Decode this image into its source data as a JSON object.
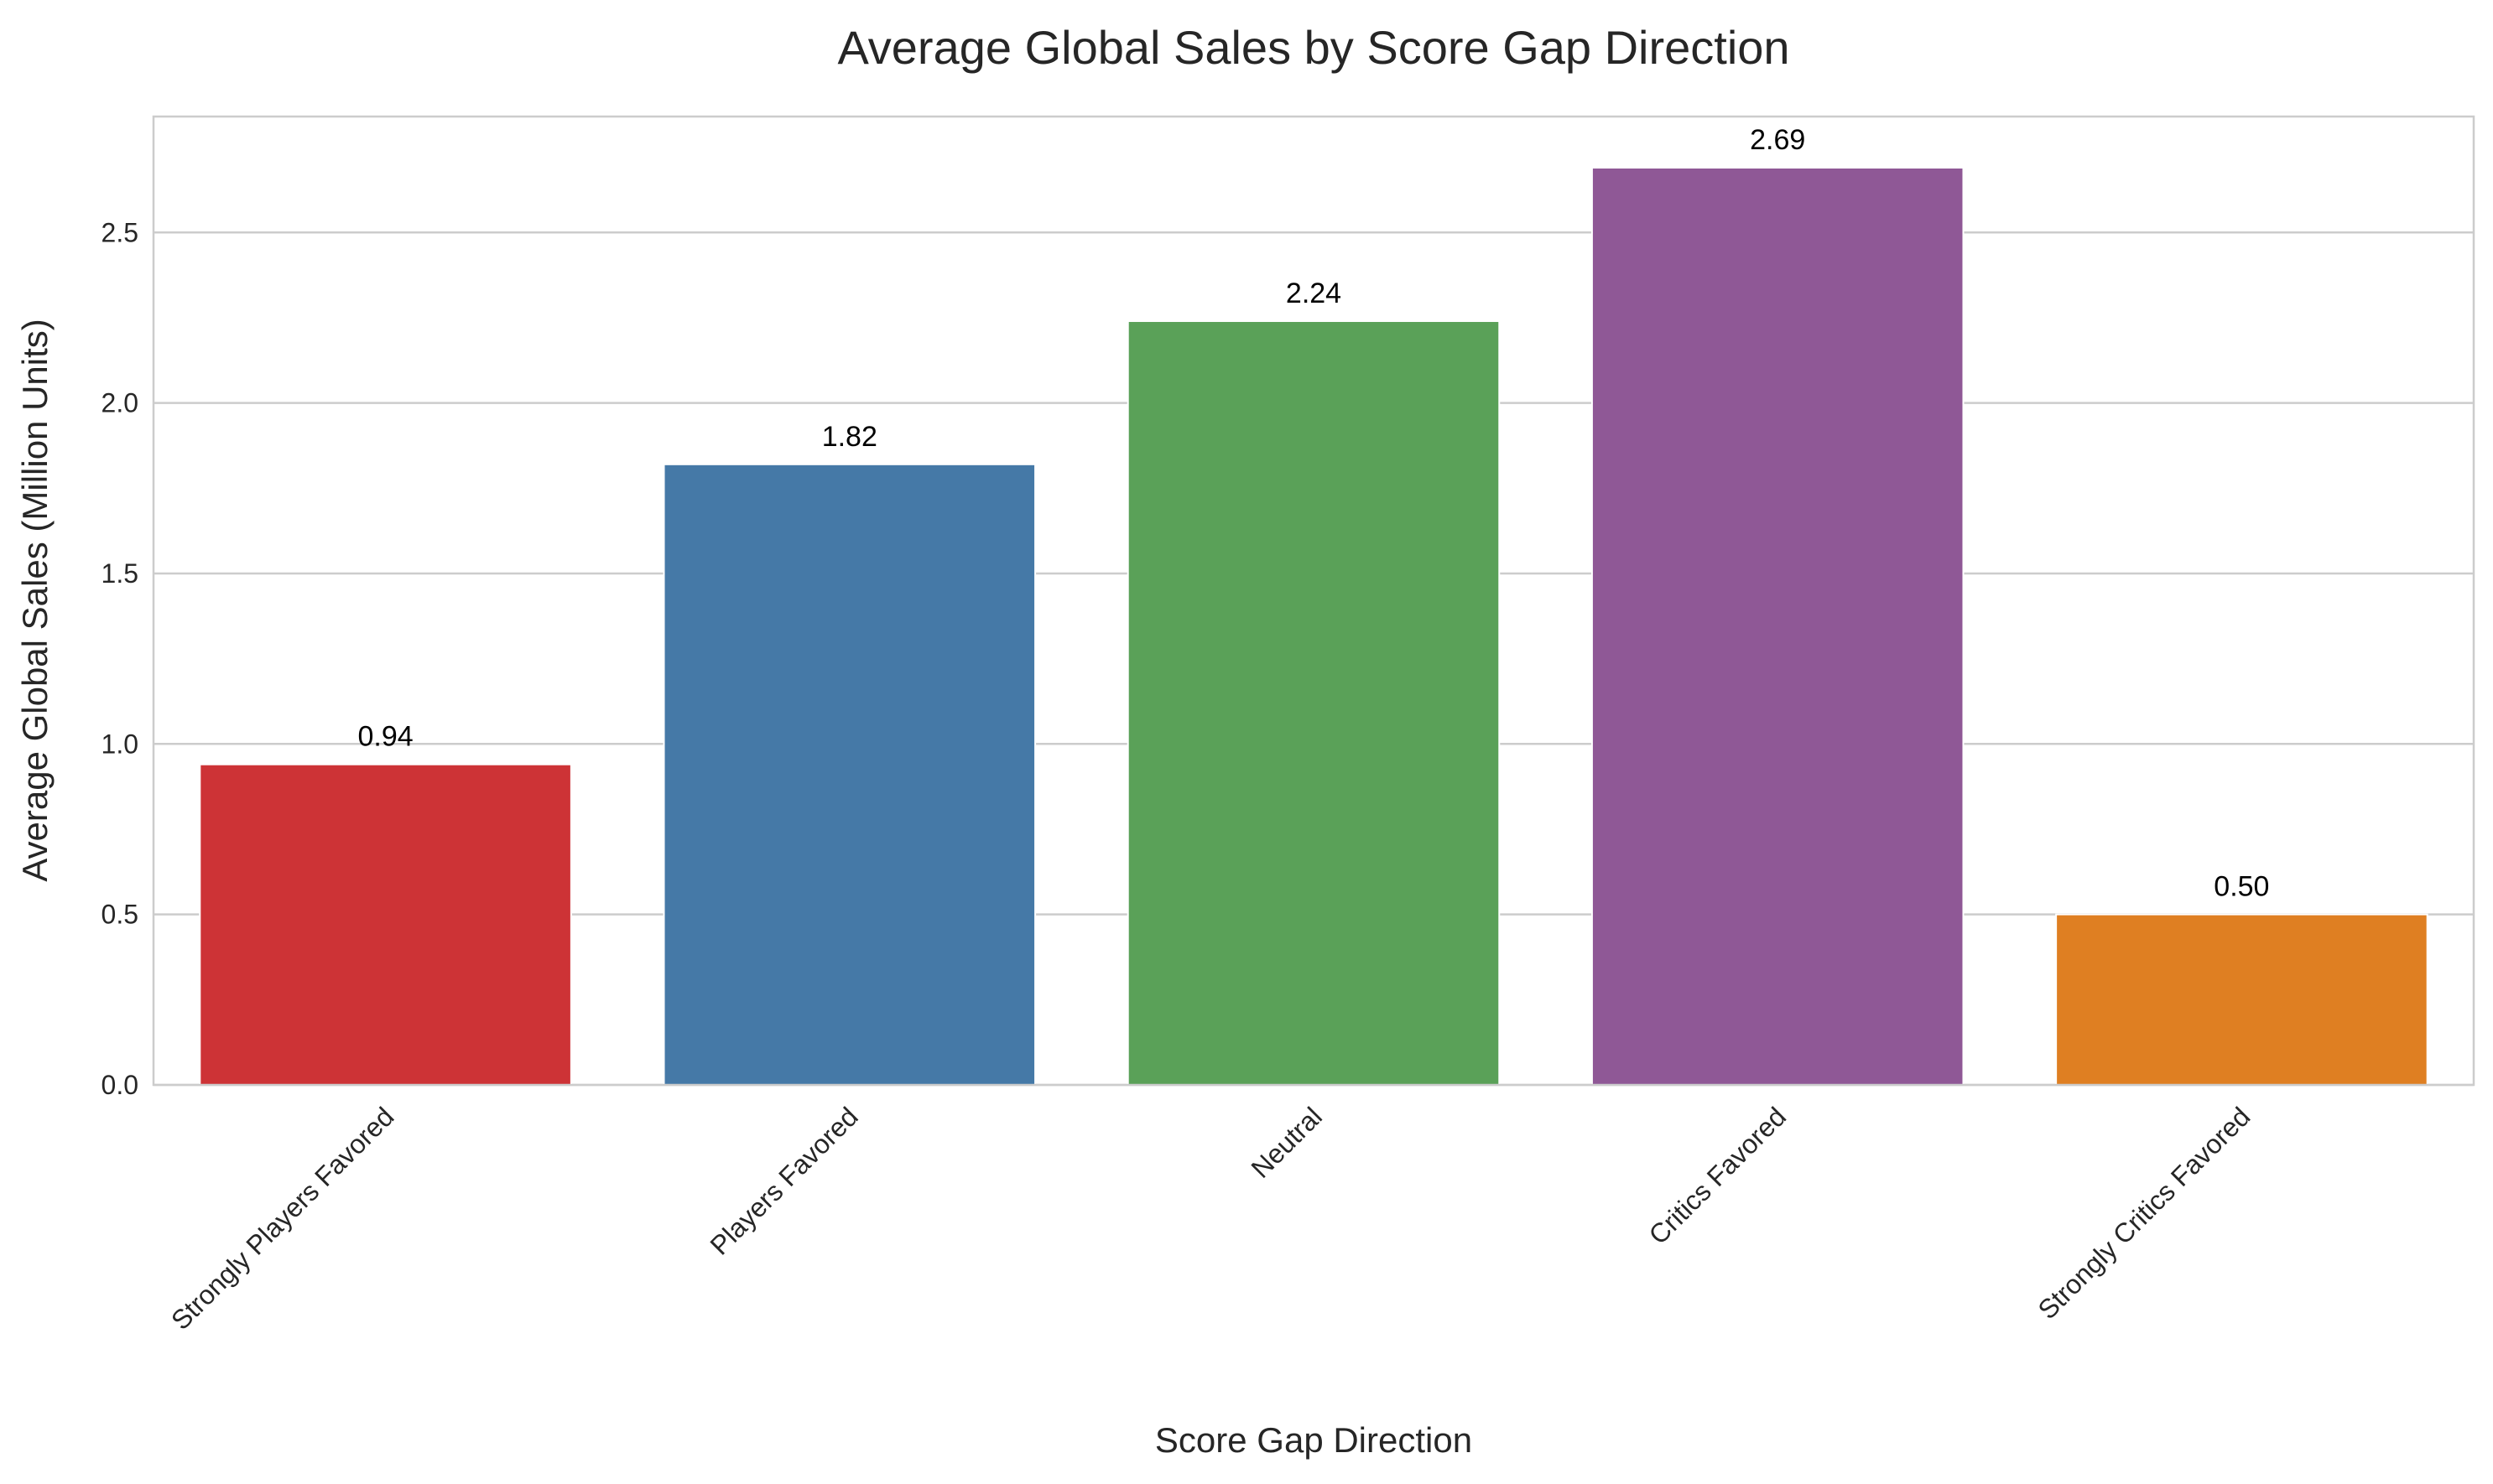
{
  "chart_data": {
    "type": "bar",
    "title": "Average Global Sales by Score Gap Direction",
    "xlabel": "Score Gap Direction",
    "ylabel": "Average Global Sales (Million Units)",
    "categories": [
      "Strongly Players Favored",
      "Players Favored",
      "Neutral",
      "Critics Favored",
      "Strongly Critics Favored"
    ],
    "values": [
      0.94,
      1.82,
      2.24,
      2.69,
      0.5
    ],
    "value_labels": [
      "0.94",
      "1.82",
      "2.24",
      "2.69",
      "0.50"
    ],
    "colors": [
      "#cd3336",
      "#4579a7",
      "#5aa158",
      "#8f5896",
      "#df7f22"
    ],
    "ylim": [
      0,
      2.84
    ],
    "yticks": [
      0.0,
      0.5,
      1.0,
      1.5,
      2.0,
      2.5
    ],
    "ytick_labels": [
      "0.0",
      "0.5",
      "1.0",
      "1.5",
      "2.0",
      "2.5"
    ],
    "grid": "horizontal",
    "legend": "none"
  }
}
